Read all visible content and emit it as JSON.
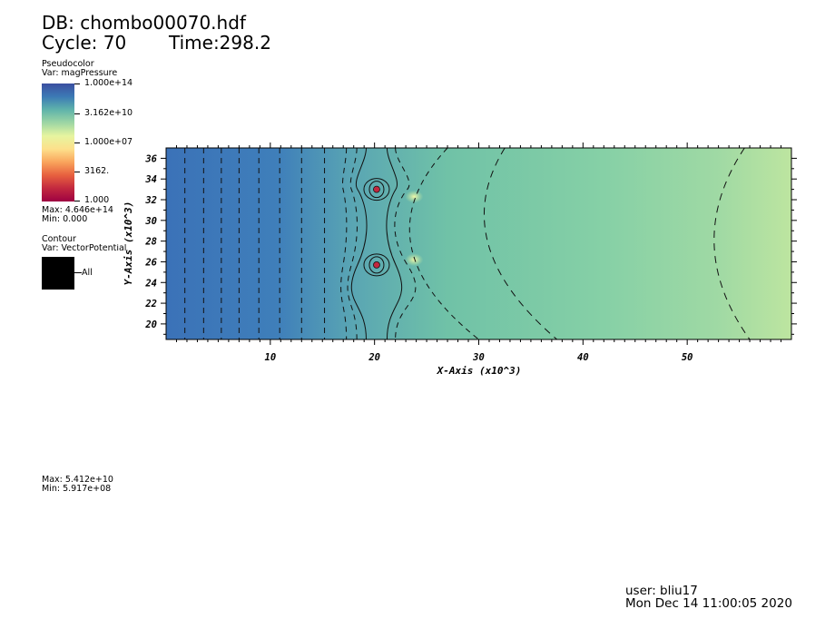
{
  "header": {
    "db_label": "DB: chombo00070.hdf",
    "cycle_label": "Cycle: 70",
    "time_label": "Time:298.2"
  },
  "pseudocolor": {
    "title": "Pseudocolor",
    "var": "Var: magPressure",
    "ticks": [
      "1.000e+14",
      "3.162e+10",
      "1.000e+07",
      "3162.",
      "1.000"
    ],
    "max": "Max:  4.646e+14",
    "min": "Min:  0.000"
  },
  "contour": {
    "title": "Contour",
    "var": "Var: VectorPotential",
    "legend_entry": "All",
    "max": "Max:  5.412e+10",
    "min": "Min:  5.917e+08"
  },
  "footer": {
    "user": "user: bliu17",
    "date": "Mon Dec 14 11:00:05 2020"
  },
  "colors": {
    "colormap": [
      "#3b4fa0",
      "#3c7ab5",
      "#5fb3ab",
      "#9dd6a4",
      "#e6f5a0",
      "#fde08b",
      "#f9a45c",
      "#e7603f",
      "#c2283f",
      "#9e0142"
    ]
  },
  "chart_data": {
    "type": "heatmap",
    "xlabel": "X-Axis (x10^3)",
    "ylabel": "Y-Axis (x10^3)",
    "xlim": [
      0,
      60
    ],
    "ylim": [
      18.5,
      37
    ],
    "x_ticks": [
      10,
      20,
      30,
      40,
      50
    ],
    "y_ticks": [
      20,
      22,
      24,
      26,
      28,
      30,
      32,
      34,
      36
    ],
    "sources": [
      {
        "x": 20.2,
        "y": 33.0
      },
      {
        "x": 20.2,
        "y": 25.7
      }
    ],
    "bright_spots": [
      {
        "x": 23.8,
        "y": 32.3
      },
      {
        "x": 23.8,
        "y": 26.2
      }
    ]
  }
}
